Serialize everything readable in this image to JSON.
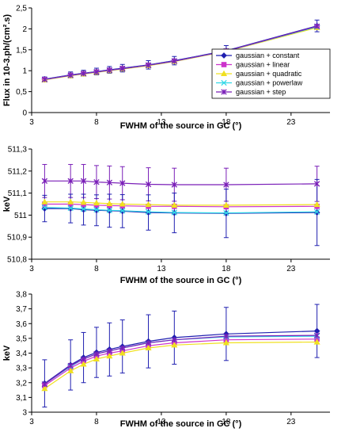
{
  "chart_data": [
    {
      "type": "line",
      "xlabel": "FWHM of the source in GC (°)",
      "ylabel": "Flux in 10-3.ph/(cm².s)",
      "xlim": [
        3,
        26
      ],
      "ylim": [
        0,
        2.5
      ],
      "xticks": [
        "3",
        "8",
        "13",
        "18",
        "23"
      ],
      "yticks": [
        "0",
        "0,5",
        "1",
        "1,5",
        "2",
        "2,5"
      ],
      "legend_position": "bottom-right",
      "x": [
        4,
        6,
        7,
        8,
        9,
        10,
        12,
        14,
        18,
        25
      ],
      "error": [
        0.05,
        0.07,
        0.07,
        0.08,
        0.08,
        0.09,
        0.1,
        0.1,
        0.12,
        0.14
      ],
      "error_series": 0,
      "series": [
        {
          "name": "gaussian + constant",
          "color": "#1f1fb0",
          "marker": "diamond",
          "values": [
            0.8,
            0.9,
            0.94,
            0.98,
            1.02,
            1.06,
            1.14,
            1.24,
            1.48,
            2.07
          ]
        },
        {
          "name": "gaussian + linear",
          "color": "#cc33cc",
          "marker": "square",
          "values": [
            0.79,
            0.89,
            0.93,
            0.97,
            1.01,
            1.05,
            1.13,
            1.23,
            1.47,
            2.05
          ]
        },
        {
          "name": "gaussian + quadratic",
          "color": "#f0e020",
          "marker": "triangle",
          "values": [
            0.78,
            0.88,
            0.92,
            0.96,
            1.0,
            1.04,
            1.12,
            1.22,
            1.46,
            2.03
          ]
        },
        {
          "name": "gaussian + powerlaw",
          "color": "#30d8e8",
          "marker": "x",
          "values": [
            0.79,
            0.89,
            0.93,
            0.97,
            1.01,
            1.05,
            1.13,
            1.23,
            1.47,
            2.05
          ]
        },
        {
          "name": "gaussian + step",
          "color": "#7a1fb8",
          "marker": "star",
          "values": [
            0.79,
            0.89,
            0.93,
            0.97,
            1.01,
            1.05,
            1.13,
            1.23,
            1.47,
            2.06
          ]
        }
      ]
    },
    {
      "type": "line",
      "xlabel": "FWHM of the source in GC (°)",
      "ylabel": "keV",
      "xlim": [
        3,
        26
      ],
      "ylim": [
        510.8,
        511.3
      ],
      "xticks": [
        "3",
        "8",
        "13",
        "18",
        "23"
      ],
      "yticks": [
        "510,8",
        "510,9",
        "511",
        "511,1",
        "511,2",
        "511,3"
      ],
      "x": [
        4,
        6,
        7,
        8,
        9,
        10,
        12,
        14,
        18,
        25
      ],
      "errorbars": [
        {
          "series": 4,
          "error": [
            0.075,
            0.075,
            0.075,
            0.075,
            0.075,
            0.075,
            0.075,
            0.075,
            0.075,
            0.08
          ]
        },
        {
          "series": 0,
          "error": [
            0.06,
            0.065,
            0.07,
            0.07,
            0.075,
            0.075,
            0.08,
            0.09,
            0.11,
            0.15
          ]
        }
      ],
      "series": [
        {
          "name": "gaussian + constant",
          "color": "#1f1fb0",
          "marker": "diamond",
          "values": [
            511.03,
            511.03,
            511.025,
            511.022,
            511.02,
            511.018,
            511.012,
            511.01,
            511.008,
            511.012
          ]
        },
        {
          "name": "gaussian + linear",
          "color": "#cc33cc",
          "marker": "square",
          "values": [
            511.05,
            511.05,
            511.048,
            511.045,
            511.043,
            511.042,
            511.04,
            511.04,
            511.038,
            511.04
          ]
        },
        {
          "name": "gaussian + quadratic",
          "color": "#f0e020",
          "marker": "triangle",
          "values": [
            511.06,
            511.06,
            511.058,
            511.055,
            511.052,
            511.05,
            511.048,
            511.045,
            511.045,
            511.048
          ]
        },
        {
          "name": "gaussian + powerlaw",
          "color": "#30d8e8",
          "marker": "x",
          "values": [
            511.035,
            511.032,
            511.028,
            511.025,
            511.022,
            511.02,
            511.015,
            511.012,
            511.01,
            511.015
          ]
        },
        {
          "name": "gaussian + step",
          "color": "#7a1fb8",
          "marker": "star",
          "values": [
            511.155,
            511.155,
            511.155,
            511.15,
            511.148,
            511.145,
            511.14,
            511.138,
            511.138,
            511.142
          ]
        }
      ]
    },
    {
      "type": "line",
      "xlabel": "FWHM of the source in GC (°)",
      "ylabel": "keV",
      "xlim": [
        3,
        26
      ],
      "ylim": [
        3.0,
        3.8
      ],
      "xticks": [
        "3",
        "8",
        "13",
        "18",
        "23"
      ],
      "yticks": [
        "3",
        "3,1",
        "3,2",
        "3,3",
        "3,4",
        "3,5",
        "3,6",
        "3,7",
        "3,8"
      ],
      "x": [
        4,
        6,
        7,
        8,
        9,
        10,
        12,
        14,
        18,
        25
      ],
      "errorbars": [
        {
          "series": 0,
          "error": [
            0.16,
            0.17,
            0.17,
            0.17,
            0.18,
            0.18,
            0.18,
            0.18,
            0.18,
            0.18
          ]
        }
      ],
      "series": [
        {
          "name": "gaussian + constant",
          "color": "#1f1fb0",
          "marker": "diamond",
          "values": [
            3.195,
            3.32,
            3.37,
            3.405,
            3.425,
            3.445,
            3.48,
            3.505,
            3.53,
            3.55
          ]
        },
        {
          "name": "gaussian + linear",
          "color": "#cc33cc",
          "marker": "square",
          "values": [
            3.18,
            3.3,
            3.345,
            3.38,
            3.4,
            3.415,
            3.45,
            3.47,
            3.49,
            3.495
          ]
        },
        {
          "name": "gaussian + quadratic",
          "color": "#f0e020",
          "marker": "triangle",
          "values": [
            3.16,
            3.28,
            3.325,
            3.36,
            3.38,
            3.4,
            3.435,
            3.455,
            3.47,
            3.475
          ]
        },
        {
          "name": "gaussian + powerlaw",
          "color": "#30d8e8",
          "marker": "x",
          "values": [
            3.19,
            3.31,
            3.36,
            3.395,
            3.415,
            3.435,
            3.47,
            3.49,
            3.51,
            3.515
          ]
        },
        {
          "name": "gaussian + step",
          "color": "#7a1fb8",
          "marker": "star",
          "values": [
            3.19,
            3.315,
            3.36,
            3.395,
            3.415,
            3.435,
            3.47,
            3.49,
            3.515,
            3.52
          ]
        }
      ]
    }
  ]
}
